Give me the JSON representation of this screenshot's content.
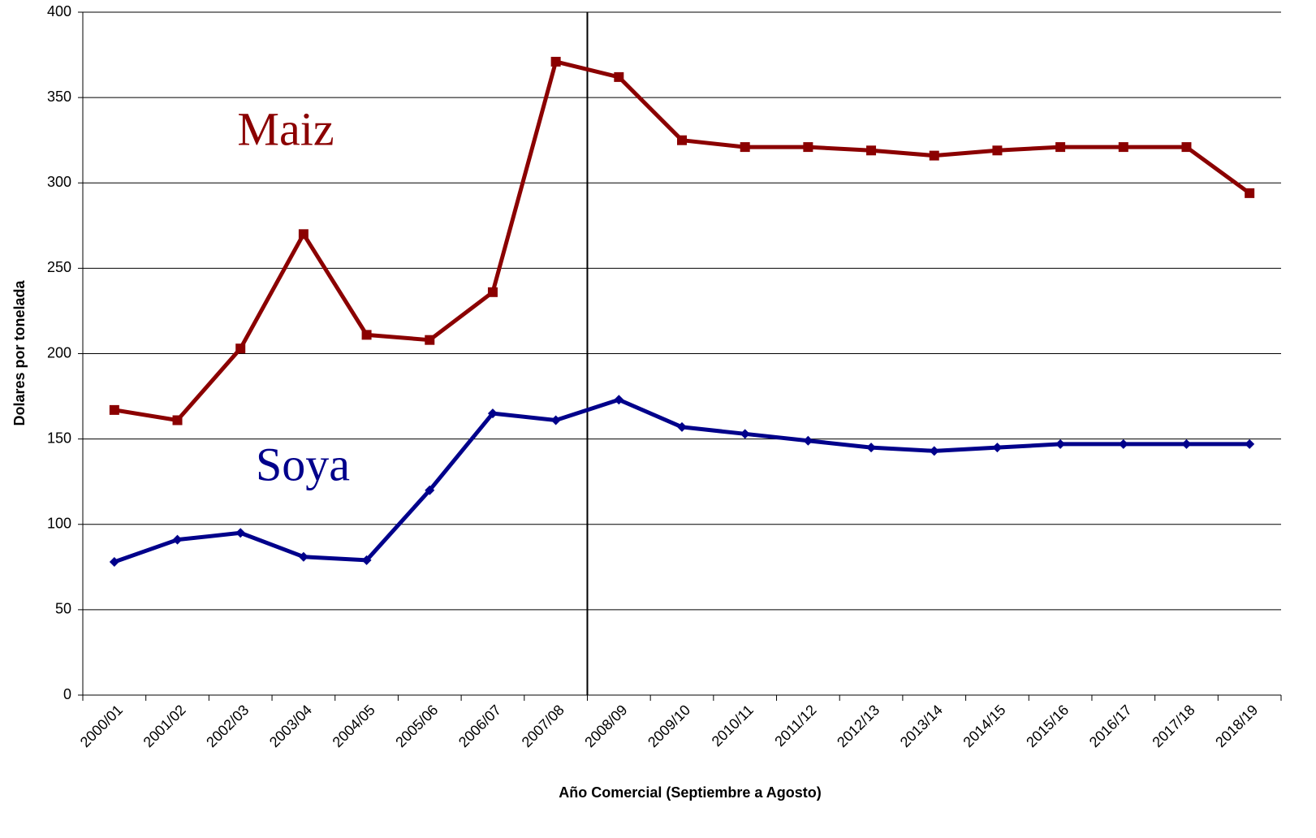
{
  "chart_data": {
    "type": "line",
    "x_label": "Año Comercial (Septiembre a Agosto)",
    "y_label": "Dolares por tonelada",
    "categories": [
      "2000/01",
      "2001/02",
      "2002/03",
      "2003/04",
      "2004/05",
      "2005/06",
      "2006/07",
      "2007/08",
      "2008/09",
      "2009/10",
      "2010/11",
      "2011/12",
      "2012/13",
      "2013/14",
      "2014/15",
      "2015/16",
      "2016/17",
      "2017/18",
      "2018/19"
    ],
    "series": [
      {
        "name": "Maiz",
        "color": "#8b0000",
        "marker": "square",
        "values": [
          167,
          161,
          203,
          270,
          211,
          208,
          236,
          371,
          362,
          325,
          321,
          321,
          319,
          316,
          319,
          321,
          321,
          321,
          294
        ]
      },
      {
        "name": "Soya",
        "color": "#00008b",
        "marker": "diamond",
        "values": [
          78,
          91,
          95,
          81,
          79,
          120,
          165,
          161,
          173,
          157,
          153,
          149,
          145,
          143,
          145,
          147,
          147,
          147,
          147
        ]
      }
    ],
    "ylim": [
      0,
      400
    ],
    "yticks": [
      0,
      50,
      100,
      150,
      200,
      250,
      300,
      350,
      400
    ],
    "grid": true,
    "vline_category": "2008/09"
  }
}
